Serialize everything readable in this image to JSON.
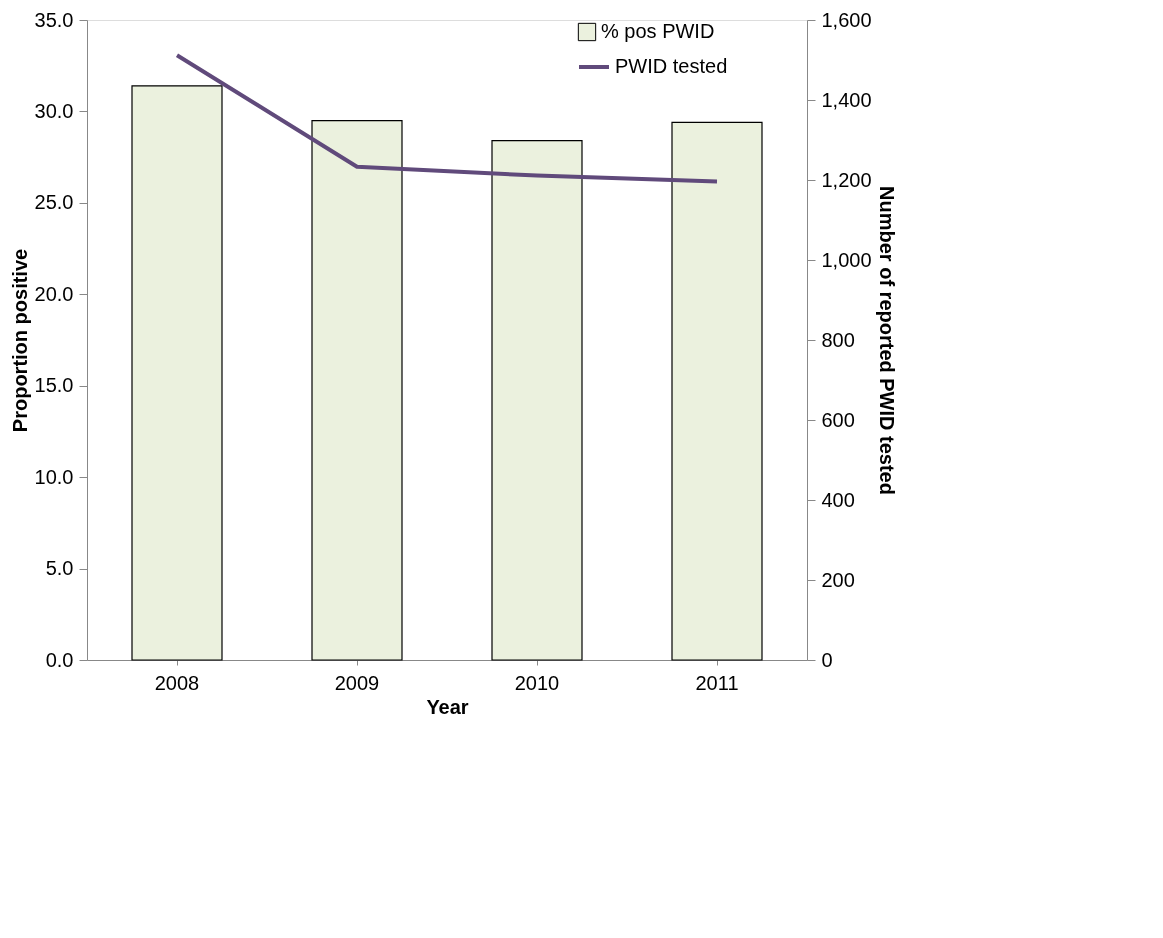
{
  "chart_data": {
    "type": "bar",
    "xlabel": "Year",
    "ylabel": "Proportion positive",
    "y2label": "Number of reported PWID tested",
    "categories": [
      "2008",
      "2009",
      "2010",
      "2011"
    ],
    "series": [
      {
        "name": "% pos PWID",
        "color": "#ebf1de",
        "values": [
          31.4,
          29.5,
          28.4,
          29.4
        ]
      },
      {
        "name": "PWID tested",
        "type": "line",
        "axis": "y2",
        "color": "#604a7b",
        "values": [
          1512,
          1233,
          1211,
          1196
        ]
      }
    ],
    "ylim": [
      0,
      35
    ],
    "yticks": [
      {
        "value": 0,
        "label": "0.0"
      },
      {
        "value": 5,
        "label": "5.0"
      },
      {
        "value": 10,
        "label": "10.0"
      },
      {
        "value": 15,
        "label": "15.0"
      },
      {
        "value": 20,
        "label": "20.0"
      },
      {
        "value": 25,
        "label": "25.0"
      },
      {
        "value": 30,
        "label": "30.0"
      },
      {
        "value": 35,
        "label": "35.0"
      }
    ],
    "y2lim": [
      0,
      1600
    ],
    "y2ticks": [
      0,
      200,
      400,
      600,
      800,
      {
        "value": 1000,
        "label": "1,000"
      },
      {
        "value": 1200,
        "label": "1,200"
      },
      {
        "value": 1400,
        "label": "1,400"
      },
      {
        "value": 1600,
        "label": "1,600"
      }
    ],
    "legend": "top right"
  }
}
